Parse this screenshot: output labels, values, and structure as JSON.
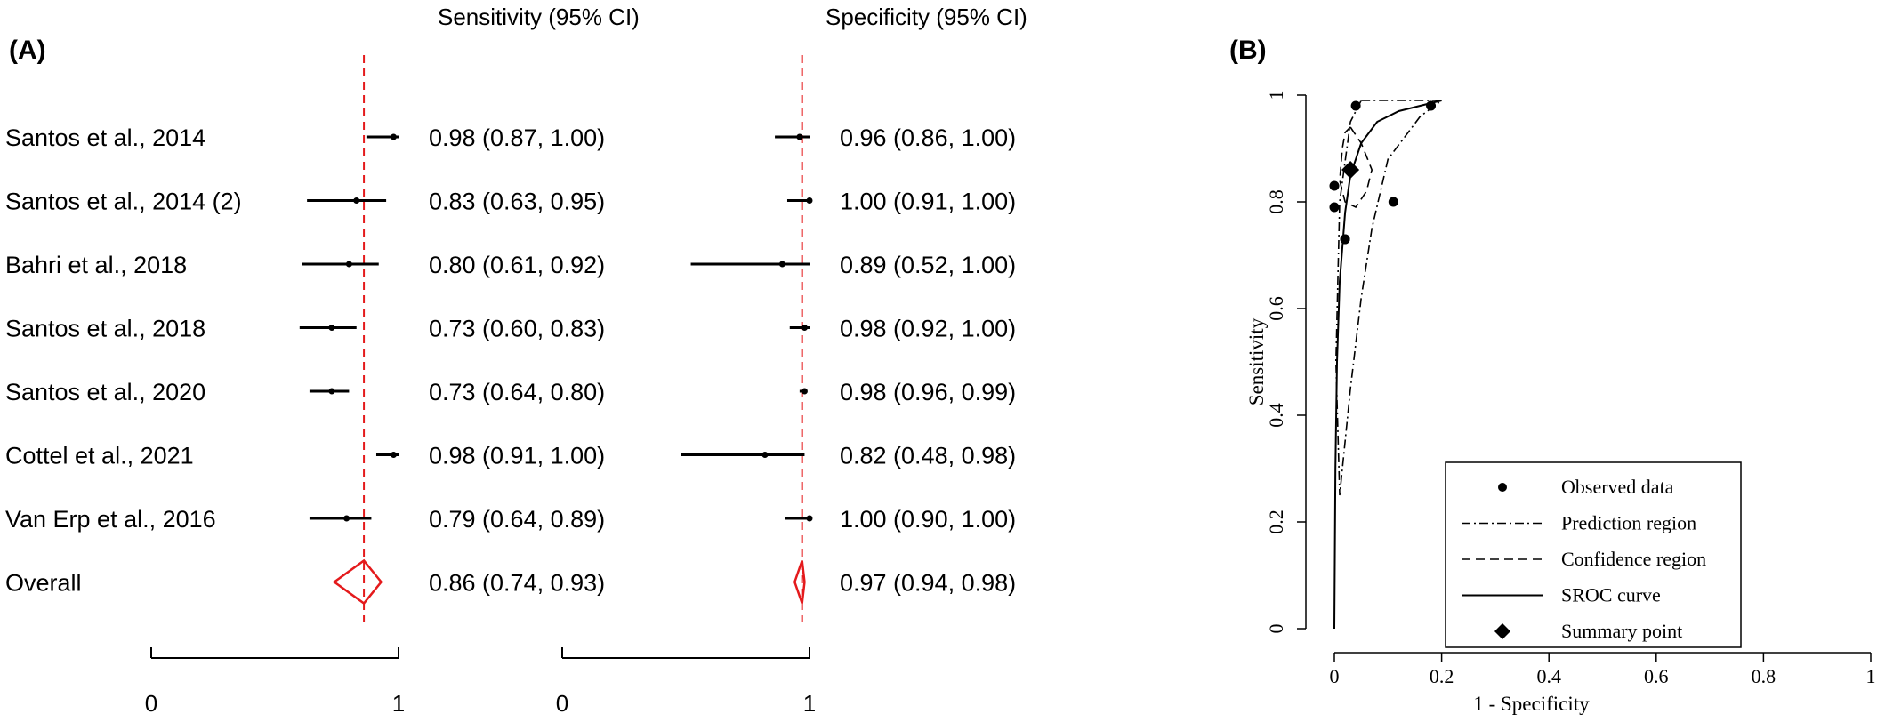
{
  "panel_a": {
    "label": "(A)",
    "sens_header": "Sensitivity (95% CI)",
    "spec_header": "Specificity (95% CI)",
    "axis_tick_0": "0",
    "axis_tick_1": "1"
  },
  "panel_b": {
    "label": "(B)"
  },
  "colors": {
    "reference_line": "#e41a1c",
    "summary_diamond": "#e41a1c",
    "ink": "#000000"
  },
  "chart_data": [
    {
      "type": "forest",
      "panel": "A",
      "columns": [
        "Sensitivity (95% CI)",
        "Specificity (95% CI)"
      ],
      "xlim": [
        0,
        1
      ],
      "xticks": [
        "0",
        "1"
      ],
      "reference_line": {
        "sensitivity": 0.86,
        "specificity": 0.97,
        "style": "dashed"
      },
      "studies": [
        {
          "name": "Santos et al., 2014",
          "sens": 0.98,
          "sens_lo": 0.87,
          "sens_hi": 1.0,
          "sens_text": "0.98 (0.87, 1.00)",
          "spec": 0.96,
          "spec_lo": 0.86,
          "spec_hi": 1.0,
          "spec_text": "0.96 (0.86, 1.00)"
        },
        {
          "name": "Santos et al., 2014 (2)",
          "sens": 0.83,
          "sens_lo": 0.63,
          "sens_hi": 0.95,
          "sens_text": "0.83 (0.63, 0.95)",
          "spec": 1.0,
          "spec_lo": 0.91,
          "spec_hi": 1.0,
          "spec_text": "1.00 (0.91, 1.00)"
        },
        {
          "name": "Bahri et al., 2018",
          "sens": 0.8,
          "sens_lo": 0.61,
          "sens_hi": 0.92,
          "sens_text": "0.80 (0.61, 0.92)",
          "spec": 0.89,
          "spec_lo": 0.52,
          "spec_hi": 1.0,
          "spec_text": "0.89 (0.52, 1.00)"
        },
        {
          "name": "Santos et al., 2018",
          "sens": 0.73,
          "sens_lo": 0.6,
          "sens_hi": 0.83,
          "sens_text": "0.73 (0.60, 0.83)",
          "spec": 0.98,
          "spec_lo": 0.92,
          "spec_hi": 1.0,
          "spec_text": "0.98 (0.92, 1.00)"
        },
        {
          "name": "Santos et al., 2020",
          "sens": 0.73,
          "sens_lo": 0.64,
          "sens_hi": 0.8,
          "sens_text": "0.73 (0.64, 0.80)",
          "spec": 0.98,
          "spec_lo": 0.96,
          "spec_hi": 0.99,
          "spec_text": "0.98 (0.96, 0.99)"
        },
        {
          "name": "Cottel et al., 2021",
          "sens": 0.98,
          "sens_lo": 0.91,
          "sens_hi": 1.0,
          "sens_text": "0.98 (0.91, 1.00)",
          "spec": 0.82,
          "spec_lo": 0.48,
          "spec_hi": 0.98,
          "spec_text": "0.82 (0.48, 0.98)"
        },
        {
          "name": "Van Erp et al., 2016",
          "sens": 0.79,
          "sens_lo": 0.64,
          "sens_hi": 0.89,
          "sens_text": "0.79 (0.64, 0.89)",
          "spec": 1.0,
          "spec_lo": 0.9,
          "spec_hi": 1.0,
          "spec_text": "1.00 (0.90, 1.00)"
        }
      ],
      "overall": {
        "name": "Overall",
        "sens": 0.86,
        "sens_lo": 0.74,
        "sens_hi": 0.93,
        "sens_text": "0.86 (0.74, 0.93)",
        "spec": 0.97,
        "spec_lo": 0.94,
        "spec_hi": 0.98,
        "spec_text": "0.97 (0.94, 0.98)"
      }
    },
    {
      "type": "scatter",
      "panel": "B",
      "xlabel": "1 - Specificity",
      "ylabel": "Sensitivity",
      "xlim": [
        0,
        1
      ],
      "ylim": [
        0,
        1
      ],
      "xticks": [
        0,
        0.2,
        0.4,
        0.6,
        0.8,
        1
      ],
      "yticks": [
        0,
        0.2,
        0.4,
        0.6,
        0.8,
        1
      ],
      "xtick_labels": [
        "0",
        "0.2",
        "0.4",
        "0.6",
        "0.8",
        "1"
      ],
      "ytick_labels": [
        "0",
        "0.2",
        "0.4",
        "0.6",
        "0.8",
        "1"
      ],
      "legend_position": "bottom-right",
      "legend": [
        "Observed data",
        "Prediction region",
        "Confidence region",
        "SROC curve",
        "Summary point"
      ],
      "observed_data": [
        {
          "x": 0.04,
          "y": 0.98
        },
        {
          "x": 0.0,
          "y": 0.83
        },
        {
          "x": 0.11,
          "y": 0.8
        },
        {
          "x": 0.02,
          "y": 0.73
        },
        {
          "x": 0.02,
          "y": 0.73
        },
        {
          "x": 0.18,
          "y": 0.98
        },
        {
          "x": 0.0,
          "y": 0.79
        }
      ],
      "summary_point": {
        "x": 0.03,
        "y": 0.86
      },
      "sroc_curve": [
        [
          0.0,
          0.0
        ],
        [
          0.002,
          0.3
        ],
        [
          0.005,
          0.5
        ],
        [
          0.01,
          0.65
        ],
        [
          0.02,
          0.78
        ],
        [
          0.03,
          0.85
        ],
        [
          0.05,
          0.91
        ],
        [
          0.08,
          0.95
        ],
        [
          0.12,
          0.97
        ],
        [
          0.2,
          0.99
        ]
      ],
      "confidence_region": [
        [
          0.03,
          0.94
        ],
        [
          0.05,
          0.91
        ],
        [
          0.07,
          0.86
        ],
        [
          0.06,
          0.82
        ],
        [
          0.04,
          0.79
        ],
        [
          0.02,
          0.8
        ],
        [
          0.01,
          0.84
        ],
        [
          0.015,
          0.9
        ],
        [
          0.02,
          0.93
        ],
        [
          0.03,
          0.94
        ]
      ],
      "prediction_region": [
        [
          0.05,
          0.99
        ],
        [
          0.14,
          0.99
        ],
        [
          0.2,
          0.99
        ],
        [
          0.16,
          0.96
        ],
        [
          0.1,
          0.88
        ],
        [
          0.07,
          0.75
        ],
        [
          0.05,
          0.62
        ],
        [
          0.03,
          0.45
        ],
        [
          0.01,
          0.25
        ],
        [
          0.003,
          0.5
        ],
        [
          0.01,
          0.8
        ],
        [
          0.03,
          0.95
        ],
        [
          0.05,
          0.99
        ]
      ]
    }
  ]
}
